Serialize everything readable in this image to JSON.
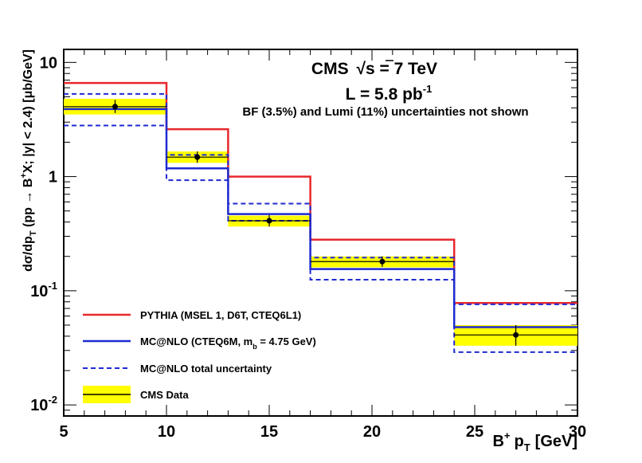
{
  "chart_data": {
    "type": "line",
    "scale": "log-y",
    "title_line1": "CMS √s = 7 TeV",
    "title_cms": "CMS",
    "title_energy": "s = 7 TeV",
    "lumi_prefix": "L = 5.8 pb",
    "lumi_exponent": "-1",
    "note": "BF (3.5%) and Lumi (11%) uncertainties not shown",
    "xlabel_main": "B",
    "xlabel_sup": "+",
    "xlabel_p": "p",
    "xlabel_sub": "T",
    "xlabel_unit": "[GeV]",
    "ylabel": "dσ/dp_T (pp → B⁺X; |y| < 2.4) [μb/GeV]",
    "ylabel_parts": {
      "a": "dσ/dp",
      "sub": "T",
      "b": " (pp → B",
      "sup": "+",
      "c": "X; |y| < 2.4) [μb/GeV]"
    },
    "xlim": [
      5,
      30
    ],
    "ylim": [
      0.008,
      13
    ],
    "x_ticks": [
      {
        "value": 5,
        "label": "5"
      },
      {
        "value": 10,
        "label": "10"
      },
      {
        "value": 15,
        "label": "15"
      },
      {
        "value": 20,
        "label": "20"
      },
      {
        "value": 25,
        "label": "25"
      },
      {
        "value": 30,
        "label": "30"
      }
    ],
    "y_ticks": [
      {
        "value": 0.01,
        "base": "10",
        "exp": "-2"
      },
      {
        "value": 0.1,
        "base": "10",
        "exp": "-1"
      },
      {
        "value": 1,
        "base": "1",
        "exp": ""
      },
      {
        "value": 10,
        "base": "10",
        "exp": ""
      }
    ],
    "bin_edges": [
      5,
      10,
      13,
      17,
      24,
      30
    ],
    "series": [
      {
        "name": "PYTHIA (MSEL 1, D6T, CTEQ6L1)",
        "color": "#e8282c",
        "style": "solid",
        "values": [
          6.6,
          2.6,
          1.0,
          0.28,
          0.078
        ]
      },
      {
        "name": "MC@NLO (CTEQ6M, m_b = 4.75 GeV)",
        "color": "#1f2ad0",
        "style": "solid",
        "values": [
          3.9,
          1.18,
          0.47,
          0.155,
          0.048
        ]
      },
      {
        "name": "MC@NLO total uncertainty (upper)",
        "color": "#1f2ad0",
        "style": "dashed",
        "values": [
          5.3,
          1.55,
          0.58,
          0.195,
          0.076
        ]
      },
      {
        "name": "MC@NLO total uncertainty (lower)",
        "color": "#1f2ad0",
        "style": "dashed",
        "values": [
          2.8,
          0.93,
          0.41,
          0.125,
          0.029
        ]
      }
    ],
    "data": {
      "name": "CMS Data",
      "band_color": "#ffff00",
      "points": [
        {
          "x": 7.5,
          "y": 4.1,
          "band_lo": 3.5,
          "band_hi": 4.8,
          "err_lo": 3.6,
          "err_hi": 4.7
        },
        {
          "x": 11.5,
          "y": 1.48,
          "band_lo": 1.32,
          "band_hi": 1.66,
          "err_lo": 1.32,
          "err_hi": 1.66
        },
        {
          "x": 15.0,
          "y": 0.41,
          "band_lo": 0.365,
          "band_hi": 0.455,
          "err_lo": 0.365,
          "err_hi": 0.46
        },
        {
          "x": 20.5,
          "y": 0.18,
          "band_lo": 0.16,
          "band_hi": 0.2,
          "err_lo": 0.162,
          "err_hi": 0.2
        },
        {
          "x": 27.0,
          "y": 0.041,
          "band_lo": 0.033,
          "band_hi": 0.05,
          "err_lo": 0.033,
          "err_hi": 0.05
        }
      ]
    },
    "legend": {
      "placement": "bottom-left",
      "pythia": {
        "text": "PYTHIA (MSEL 1, D6T, CTEQ6L1)"
      },
      "mcnlo": {
        "a": "MC@NLO (CTEQ6M, m",
        "sub": "b",
        "b": " = 4.75 GeV)"
      },
      "unc": {
        "text": "MC@NLO total uncertainty"
      },
      "data": {
        "text": "CMS Data"
      }
    }
  }
}
